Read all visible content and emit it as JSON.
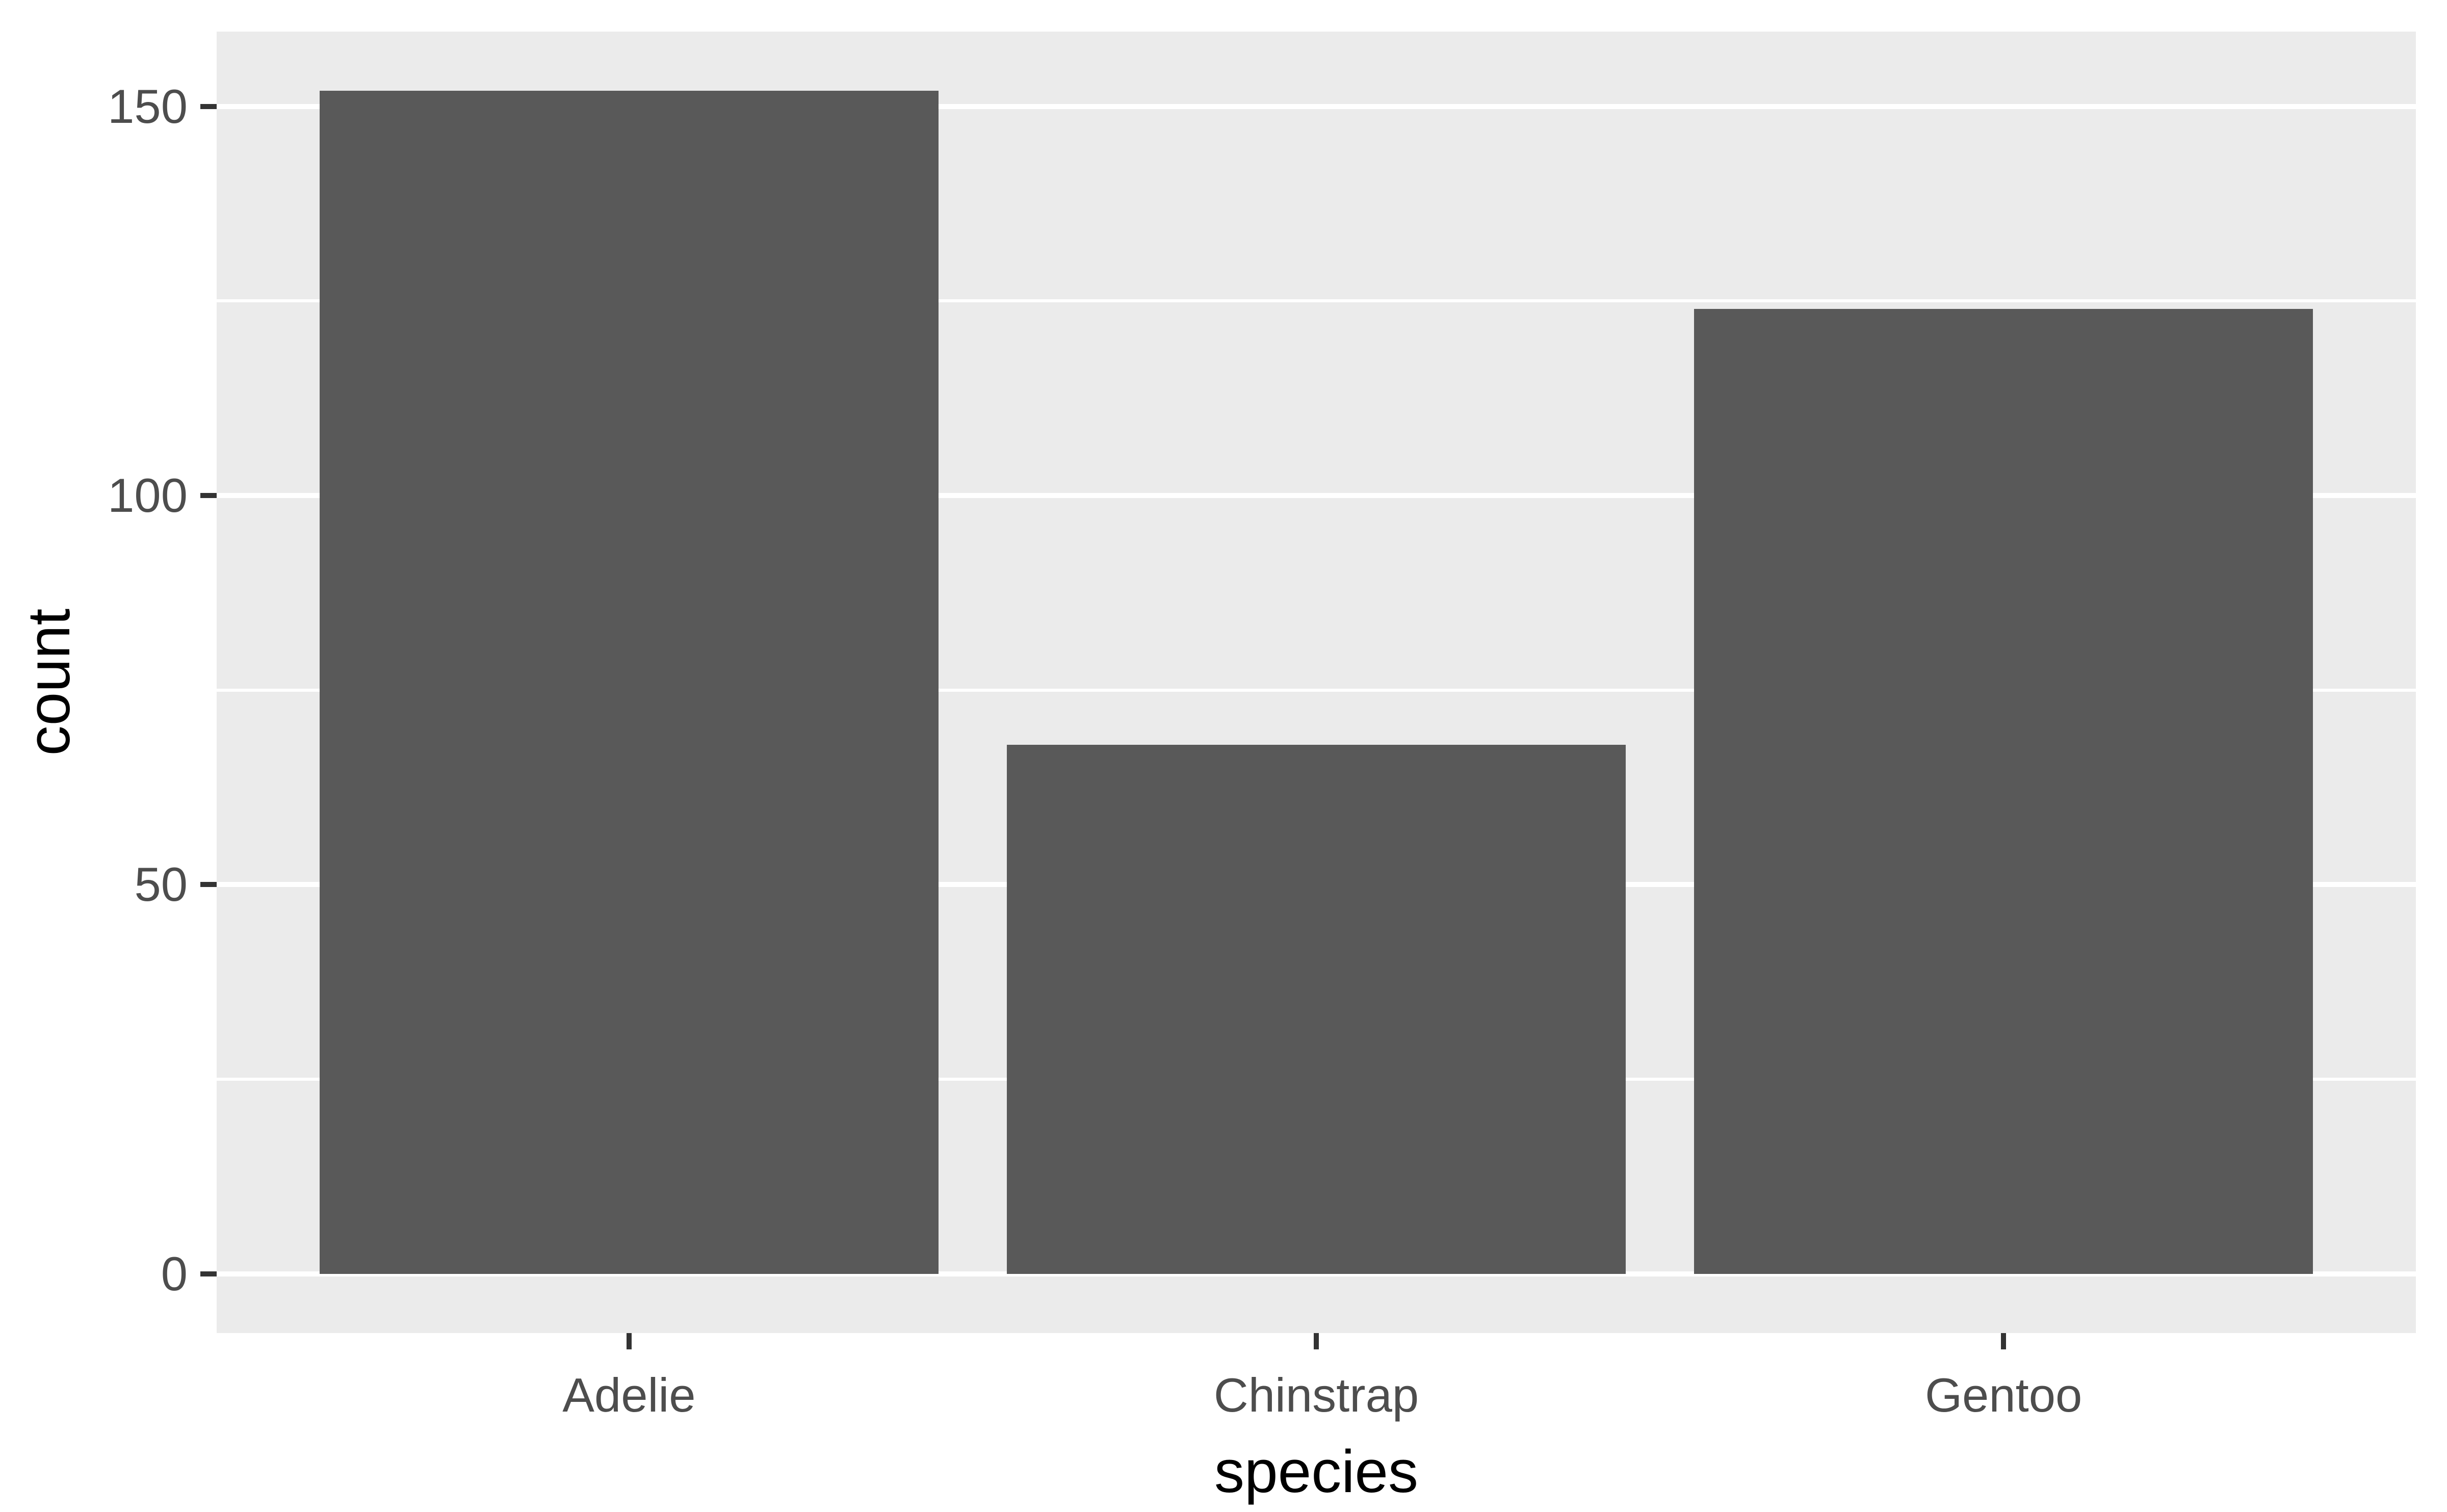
{
  "chart_data": {
    "type": "bar",
    "title": "",
    "categories": [
      "Adelie",
      "Chinstrap",
      "Gentoo"
    ],
    "values": [
      152,
      68,
      124
    ],
    "xlabel": "species",
    "ylabel": "count",
    "yticks": [
      0,
      50,
      100,
      150
    ],
    "ytick_labels": [
      "0",
      "50",
      "100",
      "150"
    ],
    "xtick_labels": [
      "Adelie",
      "Chinstrap",
      "Gentoo"
    ],
    "ylim": [
      0,
      152
    ],
    "y_expansion": 0.05,
    "x_expansion_units": 0.6,
    "bar_width_fraction": 0.9,
    "grid": "major+minor horizontal, no vertical",
    "legend_position": "none",
    "colors": {
      "bar_fill": "#595959",
      "panel_background": "#EBEBEB",
      "gridline": "#FFFFFF",
      "tick_mark": "#333333",
      "axis_text": "#4D4D4D",
      "axis_title": "#000000",
      "figure_background": "#FFFFFF"
    }
  }
}
